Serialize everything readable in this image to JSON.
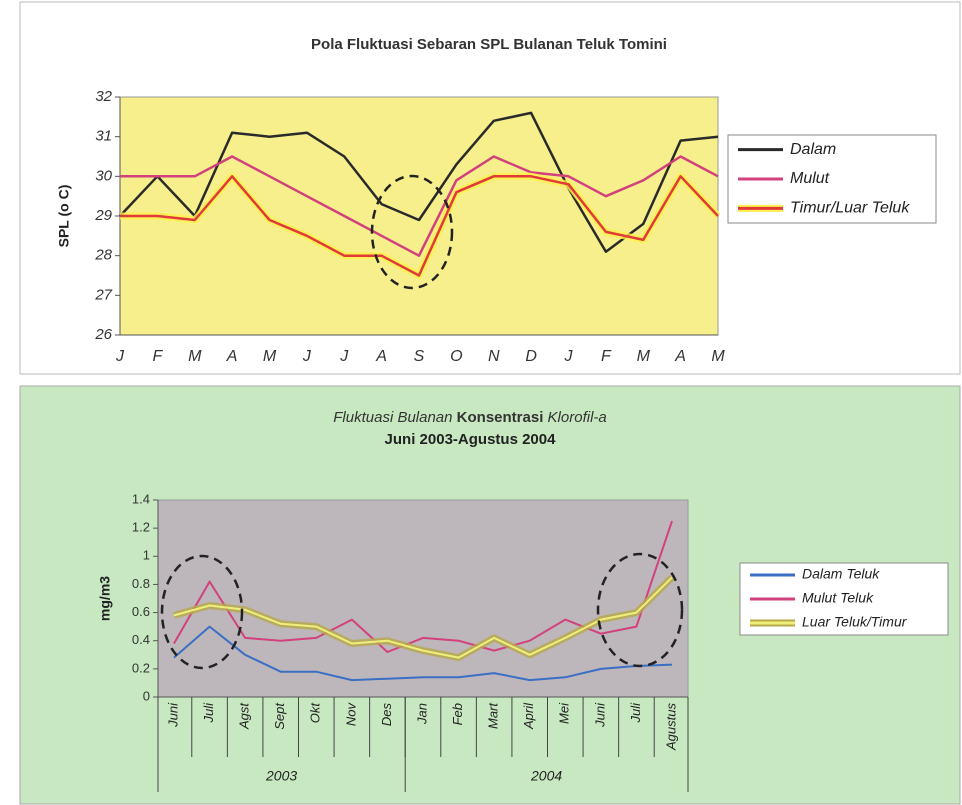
{
  "chart_data": [
    {
      "type": "line",
      "title": "Pola Fluktuasi Sebaran SPL Bulanan Teluk Tomini",
      "y_label": "SPL (o C)",
      "categories": [
        "J",
        "F",
        "M",
        "A",
        "M",
        "J",
        "J",
        "A",
        "S",
        "O",
        "N",
        "D",
        "J",
        "F",
        "M",
        "A",
        "M"
      ],
      "ylim": [
        26,
        32
      ],
      "yticks": [
        26,
        27,
        28,
        29,
        30,
        31,
        32
      ],
      "background": "#f7ef8c",
      "legend": "right",
      "series": [
        {
          "name": "Dalam",
          "color": "#2a2a2a",
          "values": [
            29,
            30,
            29,
            31.1,
            31,
            31.1,
            30.5,
            29.3,
            28.9,
            30.3,
            31.4,
            31.6,
            29.7,
            28.1,
            28.8,
            30.9,
            31
          ]
        },
        {
          "name": "Mulut",
          "color": "#d2417c",
          "values": [
            30,
            30,
            30,
            30.5,
            30,
            29.5,
            29,
            28.5,
            28,
            29.9,
            30.5,
            30.1,
            30,
            29.5,
            29.9,
            30.5,
            30
          ]
        },
        {
          "name": "Timur/Luar Teluk",
          "color": "#e03a3a",
          "glow": "#fff14a",
          "values": [
            29,
            29,
            28.9,
            30,
            28.9,
            28.5,
            28,
            28,
            27.5,
            29.6,
            30,
            30,
            29.8,
            28.6,
            28.4,
            30,
            29
          ]
        }
      ]
    },
    {
      "type": "line",
      "title_parts": [
        "Fluktuasi Bulanan",
        "Konsentrasi",
        "Klorofil-a"
      ],
      "subtitle": "Juni 2003-Agustus 2004",
      "y_label": "mg/m3",
      "categories": [
        "Juni",
        "Juli",
        "Agst",
        "Sept",
        "Okt",
        "Nov",
        "Des",
        "Jan",
        "Feb",
        "Mart",
        "April",
        "Mei",
        "Juni",
        "Juli",
        "Agustus"
      ],
      "year_labels": [
        "2003",
        "2004"
      ],
      "ylim": [
        0,
        1.4
      ],
      "yticks": [
        0,
        0.2,
        0.4,
        0.6,
        0.8,
        1,
        1.2,
        1.4
      ],
      "background": "#bdb7bc",
      "legend": "right",
      "series": [
        {
          "name": "Dalam Teluk",
          "color": "#3a6fc4",
          "values": [
            0.28,
            0.5,
            0.3,
            0.18,
            0.18,
            0.12,
            0.13,
            0.14,
            0.14,
            0.17,
            0.12,
            0.14,
            0.2,
            0.22,
            0.23
          ]
        },
        {
          "name": "Mulut Teluk",
          "color": "#d2417c",
          "values": [
            0.38,
            0.82,
            0.42,
            0.4,
            0.42,
            0.55,
            0.32,
            0.42,
            0.4,
            0.33,
            0.4,
            0.55,
            0.45,
            0.5,
            1.25
          ]
        },
        {
          "name": "Luar Teluk/Timur",
          "color": "#eef07a",
          "glow": "#b7a84a",
          "values": [
            0.58,
            0.65,
            0.62,
            0.52,
            0.5,
            0.38,
            0.4,
            0.33,
            0.28,
            0.42,
            0.3,
            0.42,
            0.55,
            0.6,
            0.85
          ]
        }
      ]
    }
  ]
}
